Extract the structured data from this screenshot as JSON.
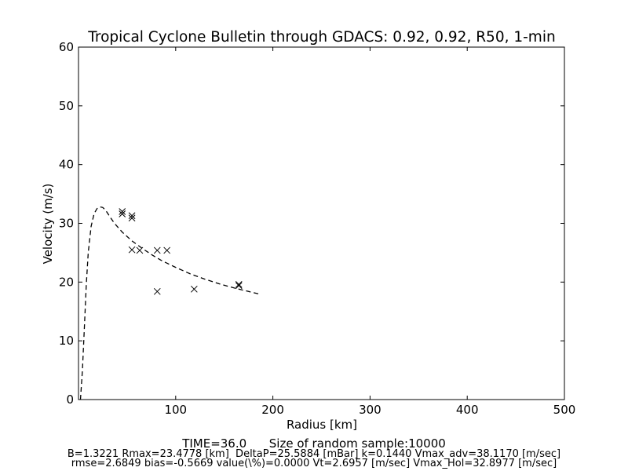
{
  "chart_data": {
    "type": "scatter",
    "title": "Tropical Cyclone Bulletin through GDACS: 0.92, 0.92, R50, 1-min",
    "xlabel": "Radius [km]",
    "ylabel": "Velocity (m/s)",
    "xlim": [
      0,
      500
    ],
    "ylim": [
      0,
      60
    ],
    "x_ticks": [
      100,
      200,
      300,
      400,
      500
    ],
    "y_ticks": [
      0,
      10,
      20,
      30,
      40,
      50,
      60
    ],
    "grid": false,
    "series": [
      {
        "style": "x-markers",
        "color": "#000000",
        "points": [
          [
            45,
            32.0
          ],
          [
            45,
            31.6
          ],
          [
            55,
            31.3
          ],
          [
            55,
            30.9
          ],
          [
            55,
            25.5
          ],
          [
            63,
            25.4
          ],
          [
            81,
            25.4
          ],
          [
            91,
            25.4
          ],
          [
            81,
            18.4
          ],
          [
            119,
            18.8
          ],
          [
            165,
            19.6
          ],
          [
            165,
            19.4
          ]
        ]
      },
      {
        "style": "dashed-line",
        "color": "#000000",
        "points": [
          [
            2,
            0.0
          ],
          [
            4,
            5.0
          ],
          [
            6,
            12.0
          ],
          [
            8,
            19.5
          ],
          [
            10,
            25.0
          ],
          [
            13,
            29.5
          ],
          [
            16,
            31.6
          ],
          [
            19,
            32.5
          ],
          [
            22,
            32.8
          ],
          [
            25,
            32.7
          ],
          [
            28,
            32.2
          ],
          [
            32,
            31.2
          ],
          [
            37,
            30.0
          ],
          [
            45,
            28.5
          ],
          [
            55,
            27.0
          ],
          [
            65,
            25.8
          ],
          [
            75,
            24.7
          ],
          [
            85,
            23.7
          ],
          [
            100,
            22.5
          ],
          [
            115,
            21.4
          ],
          [
            130,
            20.5
          ],
          [
            145,
            19.7
          ],
          [
            160,
            19.0
          ],
          [
            175,
            18.4
          ],
          [
            185,
            18.0
          ]
        ]
      }
    ]
  },
  "footer": {
    "line1": "TIME=36.0      Size of random sample:10000",
    "line2": "B=1.3221 Rmax=23.4778 [km]  DeltaP=25.5884 [mBar] k=0.1440 Vmax_adv=38.1170 [m/sec]",
    "line3": "rmse=2.6849 bias=-0.5669 value(\\%)=0.0000 Vt=2.6957 [m/sec] Vmax_Hol=32.8977 [m/sec]"
  }
}
